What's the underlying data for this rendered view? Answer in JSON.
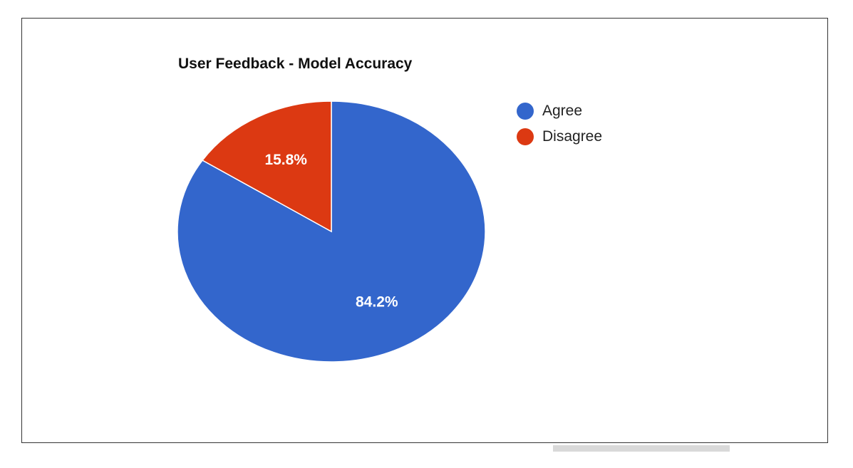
{
  "chart_data": {
    "type": "pie",
    "title": "User Feedback - Model Accuracy",
    "categories": [
      "Agree",
      "Disagree"
    ],
    "values": [
      84.2,
      15.8
    ],
    "value_labels": [
      "84.2%",
      "15.8%"
    ],
    "colors": [
      "#3366cc",
      "#dc3912"
    ],
    "legend_position": "right",
    "start": "top",
    "direction": "clockwise"
  }
}
